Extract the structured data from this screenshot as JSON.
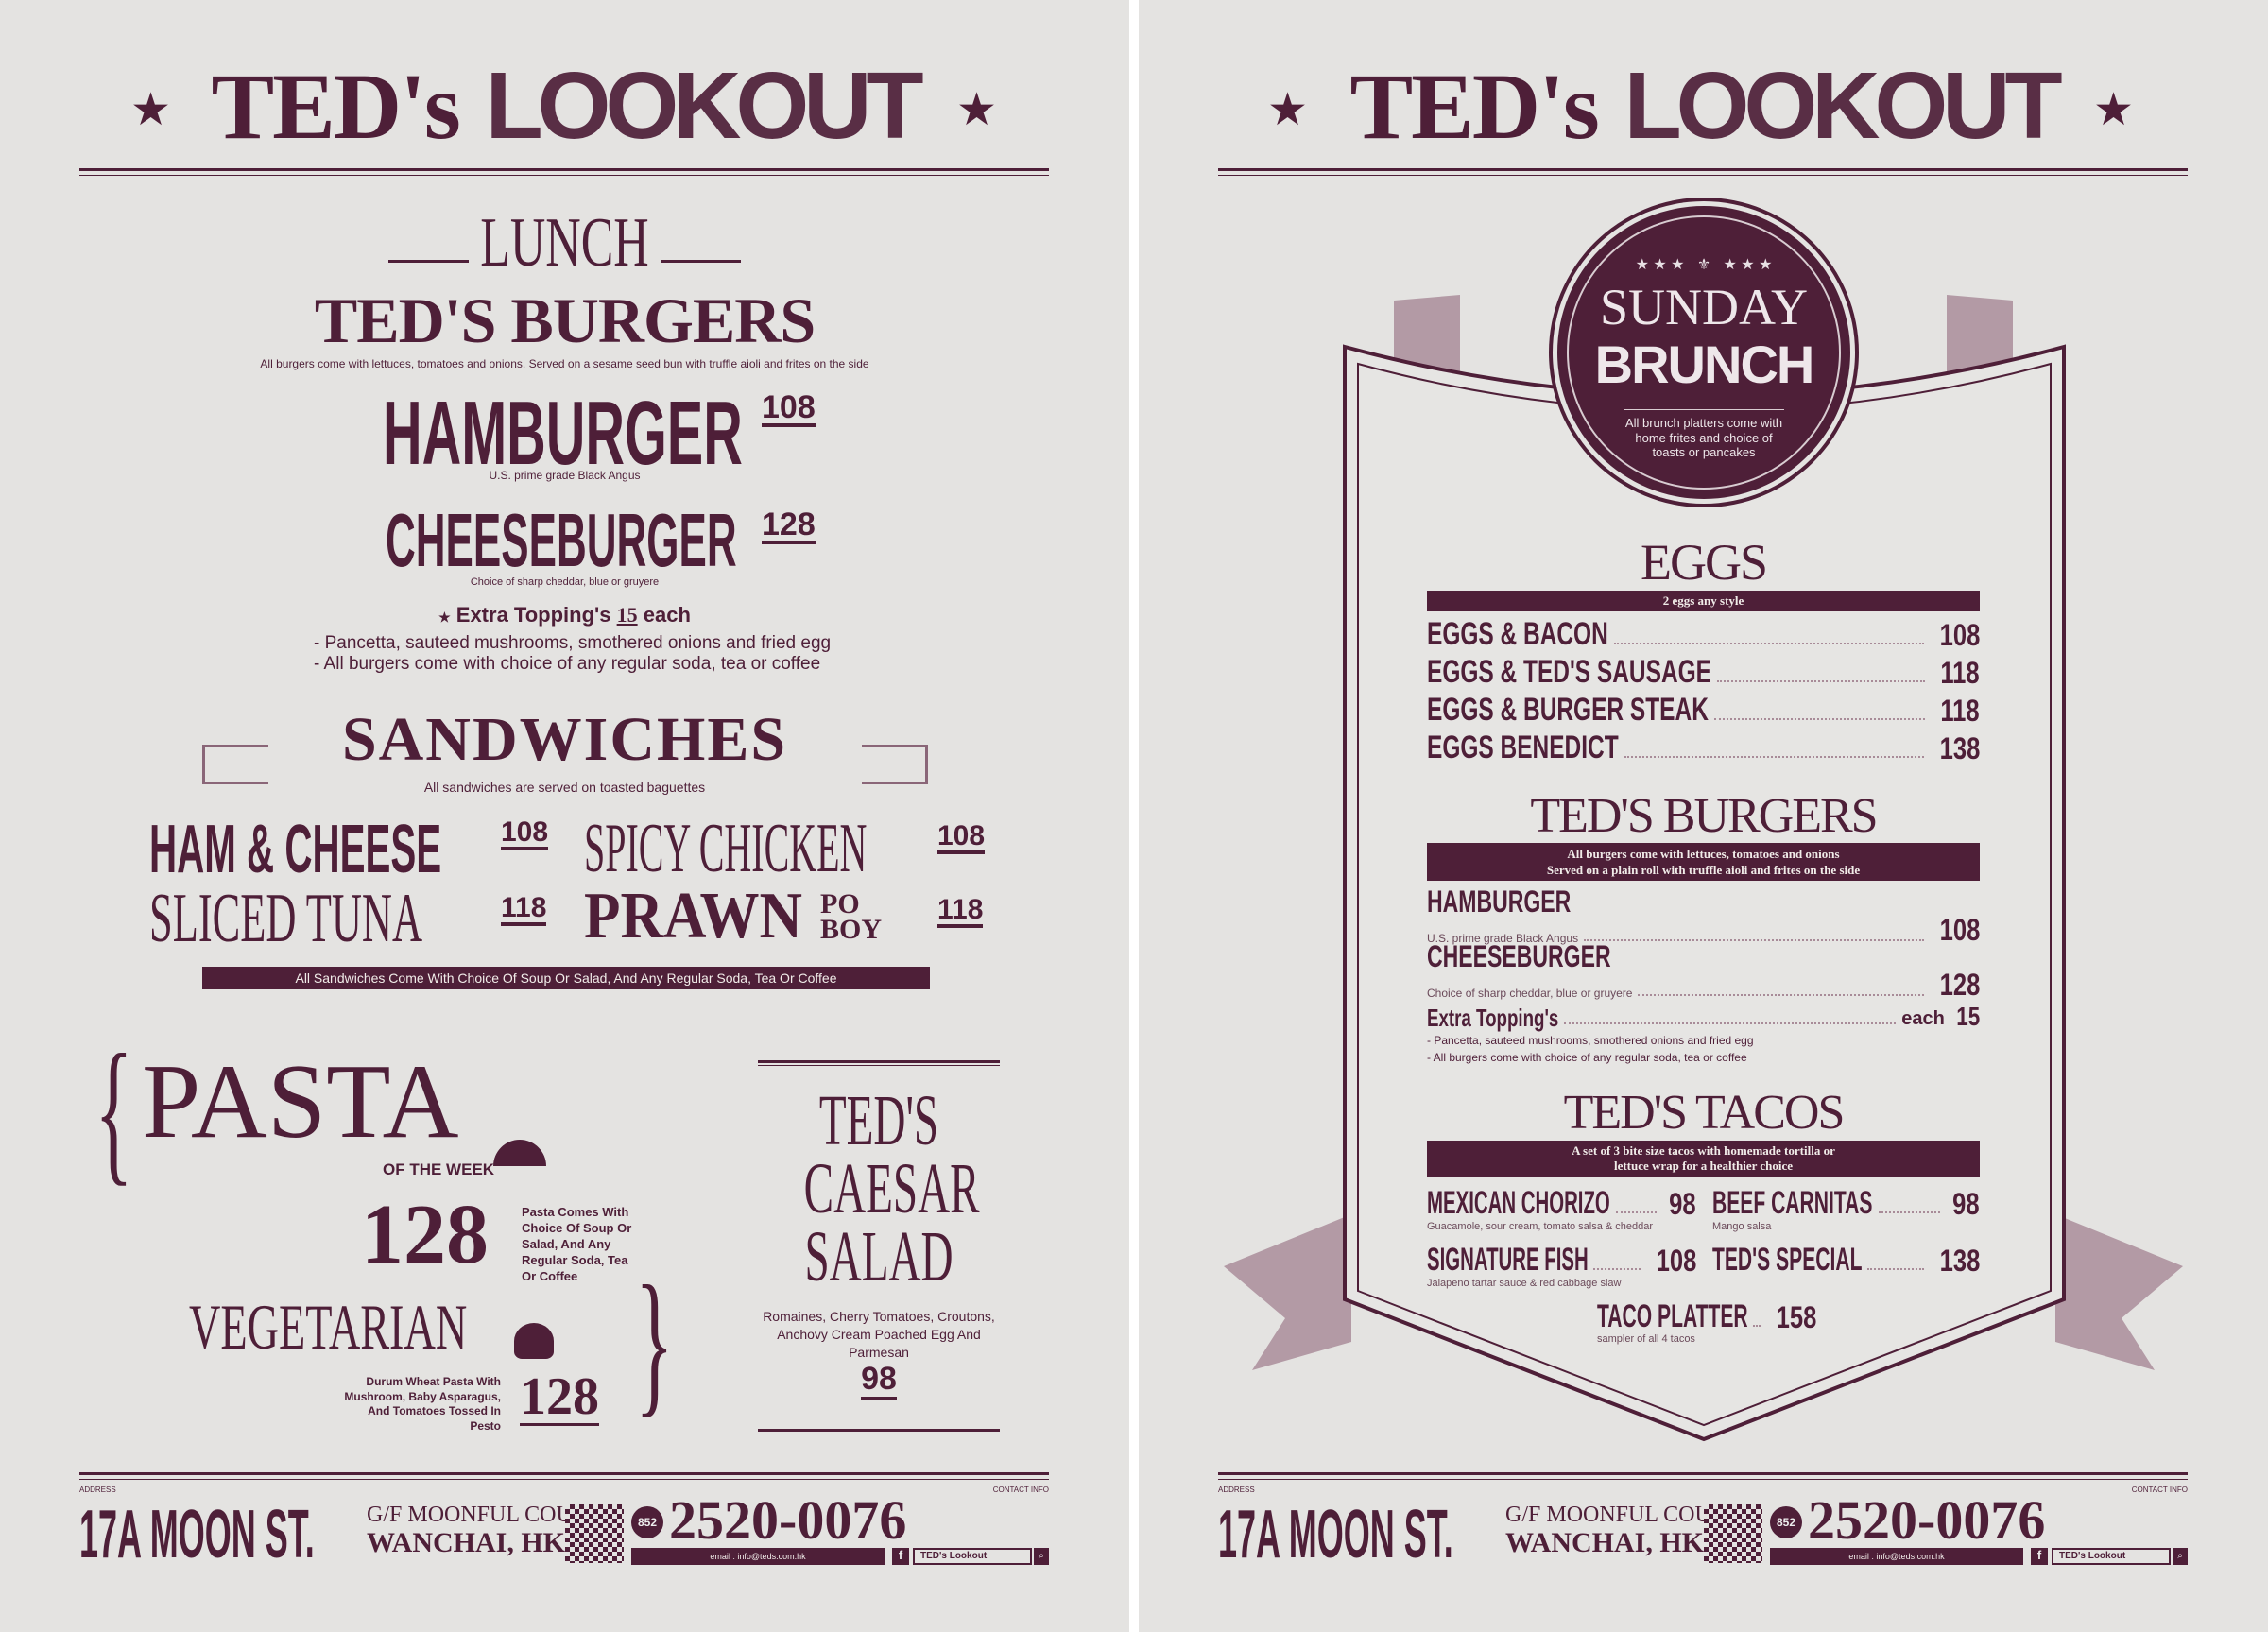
{
  "brand": {
    "name_part1": "TED's",
    "name_part2": "LOOKOUT",
    "star": "★"
  },
  "lunch": {
    "heading": "LUNCH",
    "burgers": {
      "title": "TED'S BURGERS",
      "note": "All burgers come with lettuces, tomatoes and onions. Served on a sesame seed bun with truffle aioli and frites on the side",
      "items": [
        {
          "name": "HAMBURGER",
          "price": "108",
          "desc": "U.S. prime grade Black Angus"
        },
        {
          "name": "CHEESEBURGER",
          "price": "128",
          "desc": "Choice of sharp cheddar, blue or gruyere"
        }
      ],
      "extra": {
        "label": "Extra Topping's",
        "price": "15",
        "unit": "each",
        "lines": [
          "- Pancetta, sauteed mushrooms, smothered onions and fried egg",
          "- All burgers come with choice of any regular soda, tea or coffee"
        ]
      }
    },
    "sandwiches": {
      "title": "SANDWICHES",
      "note": "All sandwiches are served on toasted baguettes",
      "items": [
        {
          "name": "HAM & CHEESE",
          "price": "108"
        },
        {
          "name": "SPICY CHICKEN",
          "price": "108"
        },
        {
          "name": "SLICED TUNA",
          "price": "118"
        },
        {
          "name": "PRAWN",
          "name_small_1": "PO",
          "name_small_2": "BOY",
          "price": "118"
        }
      ],
      "footer": "All Sandwiches Come With Choice Of Soup Or Salad, And Any Regular Soda, Tea Or Coffee"
    },
    "pasta": {
      "title": "PASTA",
      "subtitle": "OF THE WEEK",
      "price": "128",
      "desc": "Pasta Comes With Choice Of Soup Or Salad, And Any Regular Soda, Tea Or Coffee"
    },
    "vegetarian": {
      "title": "VEGETARIAN",
      "price": "128",
      "desc": "Durum Wheat Pasta With Mushroom, Baby Asparagus, And Tomatoes Tossed In Pesto"
    },
    "caesar": {
      "line1": "TED'S",
      "line2": "CAESAR",
      "line3": "SALAD",
      "desc": "Romaines, Cherry Tomatoes, Croutons, Anchovy Cream Poached Egg And Parmesan",
      "price": "98"
    }
  },
  "brunch": {
    "badge": {
      "line1": "SUNDAY",
      "line2": "BRUNCH",
      "note": "All brunch platters come with home frites and choice of toasts or pancakes"
    },
    "eggs": {
      "title": "EGGS",
      "bar": "2 eggs any style",
      "items": [
        {
          "name": "EGGS & BACON",
          "price": "108"
        },
        {
          "name": "EGGS & TED'S SAUSAGE",
          "price": "118"
        },
        {
          "name": "EGGS & BURGER STEAK",
          "price": "118"
        },
        {
          "name": "EGGS BENEDICT",
          "price": "138"
        }
      ]
    },
    "burgers": {
      "title": "TED'S BURGERS",
      "bar1": "All burgers come with lettuces, tomatoes and onions",
      "bar2": "Served on a plain roll with truffle aioli and frites on the side",
      "items": [
        {
          "name": "HAMBURGER",
          "desc": "U.S. prime grade Black Angus",
          "price": "108"
        },
        {
          "name": "CHEESEBURGER",
          "desc": "Choice of sharp cheddar, blue or gruyere",
          "price": "128"
        }
      ],
      "extra": {
        "label": "Extra Topping's",
        "unit": "each",
        "price": "15",
        "lines": [
          "- Pancetta, sauteed mushrooms, smothered onions and fried egg",
          "- All burgers come with choice of any regular soda, tea or coffee"
        ]
      }
    },
    "tacos": {
      "title": "TED'S TACOS",
      "bar1": "A set of 3 bite size tacos with homemade tortilla or",
      "bar2": "lettuce wrap for a healthier choice",
      "items": [
        {
          "name": "MEXICAN CHORIZO",
          "price": "98",
          "desc": "Guacamole, sour cream, tomato salsa & cheddar"
        },
        {
          "name": "BEEF CARNITAS",
          "price": "98",
          "desc": "Mango salsa"
        },
        {
          "name": "SIGNATURE FISH",
          "price": "108",
          "desc": "Jalapeno tartar sauce & red cabbage slaw"
        },
        {
          "name": "TED'S SPECIAL",
          "price": "138",
          "desc": ""
        },
        {
          "name": "TACO PLATTER",
          "price": "158",
          "desc": "sampler of all 4 tacos"
        }
      ]
    }
  },
  "footer": {
    "address_label": "ADDRESS",
    "contact_label": "CONTACT INFO",
    "street": "17A MOON ST.",
    "building": "G/F MOONFUL COURT",
    "district": "WANCHAI, HK",
    "country_code": "852",
    "phone": "2520-0076",
    "email": "email : info@teds.com.hk",
    "facebook": "TED's Lookout"
  },
  "colors": {
    "maroon": "#4e1f38",
    "paper": "#e4e3e1"
  }
}
